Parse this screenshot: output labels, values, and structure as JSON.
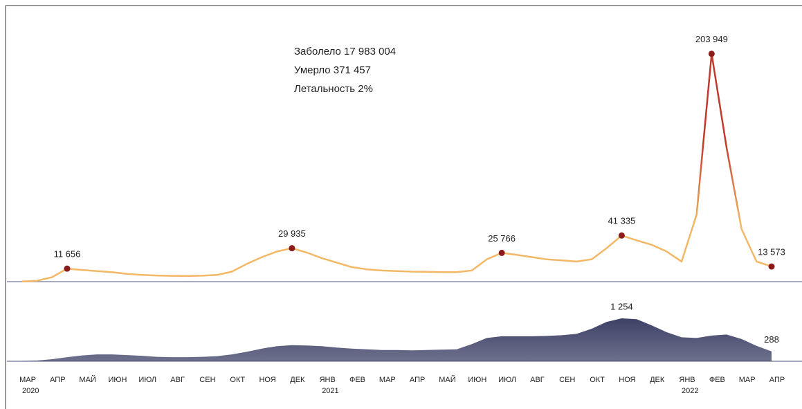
{
  "chart_data": [
    {
      "type": "line",
      "text": [
        "Заболело 17 983 004",
        "Умерло 371 457",
        "Летальность 2%"
      ],
      "categories": [
        "МАР",
        null,
        "АПР",
        null,
        "МАЙ",
        null,
        "ИЮН",
        null,
        "ИЮЛ",
        null,
        "АВГ",
        null,
        "СЕН",
        null,
        "ОКТ",
        null,
        "НОЯ",
        null,
        "ДЕК",
        null,
        "ЯНВ",
        null,
        "ФЕВ",
        null,
        "МАР",
        null,
        "АПР",
        null,
        "МАЙ",
        null,
        "ИЮН",
        null,
        "ИЮЛ",
        null,
        "АВГ",
        null,
        "СЕН",
        null,
        "ОКТ",
        null,
        "НОЯ",
        null,
        "ДЕК",
        null,
        "ЯНВ",
        null,
        "ФЕВ",
        null,
        "МАР",
        null,
        "АПР"
      ],
      "years": [
        "2020",
        null,
        null,
        null,
        null,
        null,
        null,
        null,
        null,
        null,
        null,
        null,
        null,
        null,
        null,
        null,
        null,
        null,
        null,
        null,
        "2021",
        null,
        null,
        null,
        null,
        null,
        null,
        null,
        null,
        null,
        null,
        null,
        null,
        null,
        null,
        null,
        null,
        null,
        null,
        null,
        null,
        null,
        null,
        null,
        "2022",
        null,
        null,
        null,
        null,
        null,
        null
      ],
      "values": [
        200,
        800,
        4000,
        11656,
        10500,
        9500,
        8500,
        7000,
        6000,
        5500,
        5200,
        5000,
        5300,
        6000,
        9000,
        16000,
        22000,
        27000,
        29935,
        26000,
        21000,
        17000,
        13000,
        11000,
        10000,
        9500,
        9000,
        8800,
        8500,
        8500,
        10000,
        20000,
        25766,
        24000,
        22000,
        20000,
        19000,
        18000,
        20000,
        30000,
        41335,
        37000,
        33000,
        27000,
        18000,
        60000,
        203949,
        120000,
        47000,
        18000,
        13573
      ],
      "value_labels": [
        null,
        null,
        null,
        "11 656",
        null,
        null,
        null,
        null,
        null,
        null,
        null,
        null,
        null,
        null,
        null,
        null,
        null,
        null,
        "29 935",
        null,
        null,
        null,
        null,
        null,
        null,
        null,
        null,
        null,
        null,
        null,
        null,
        null,
        "25 766",
        null,
        null,
        null,
        null,
        null,
        null,
        null,
        "41 335",
        null,
        null,
        null,
        null,
        null,
        "203 949",
        null,
        null,
        null,
        "13 573"
      ],
      "ylim": [
        0,
        210000
      ],
      "color": "#f2b865",
      "peak_color": "#c0392b",
      "point_color": "#8b1a1a"
    },
    {
      "type": "area",
      "values": [
        5,
        20,
        60,
        120,
        170,
        200,
        200,
        180,
        160,
        130,
        120,
        120,
        130,
        150,
        200,
        280,
        370,
        440,
        470,
        460,
        440,
        400,
        370,
        350,
        330,
        330,
        320,
        330,
        340,
        350,
        500,
        680,
        730,
        730,
        730,
        740,
        760,
        800,
        950,
        1150,
        1254,
        1230,
        1050,
        850,
        700,
        680,
        750,
        780,
        650,
        450,
        288
      ],
      "value_labels": [
        null,
        null,
        null,
        null,
        null,
        null,
        null,
        null,
        null,
        null,
        null,
        null,
        null,
        null,
        null,
        null,
        null,
        null,
        null,
        null,
        null,
        null,
        null,
        null,
        null,
        null,
        null,
        null,
        null,
        null,
        null,
        null,
        null,
        null,
        null,
        null,
        null,
        null,
        null,
        null,
        "1 254",
        null,
        null,
        null,
        null,
        null,
        null,
        null,
        null,
        null,
        "288"
      ],
      "ylim": [
        0,
        1300
      ],
      "color": "#3d4166"
    }
  ]
}
